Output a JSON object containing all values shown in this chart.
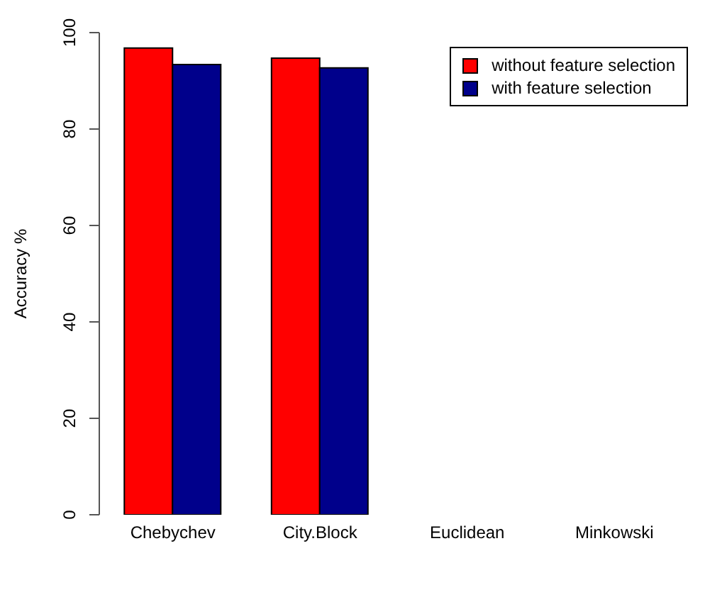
{
  "chart_data": {
    "type": "bar",
    "ylabel": "Accuracy %",
    "categories": [
      "Chebychev",
      "City.Block",
      "Euclidean",
      "Minkowski"
    ],
    "series": [
      {
        "name": "without feature selection",
        "color": "#ff0000",
        "values": [
          96.8,
          94.7,
          null,
          null
        ]
      },
      {
        "name": "with feature selection",
        "color": "#00008b",
        "values": [
          93.4,
          92.7,
          null,
          null
        ]
      }
    ],
    "ylim": [
      0,
      100
    ],
    "yticks": [
      0,
      20,
      40,
      60,
      80,
      100
    ],
    "grid": false,
    "legend": "top right"
  }
}
